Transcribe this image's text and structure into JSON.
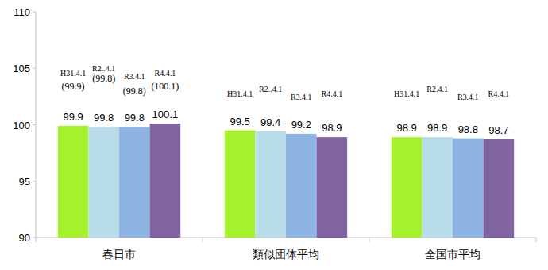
{
  "chart_data": {
    "type": "bar",
    "categories": [
      "春日市",
      "類似団体平均",
      "全国市平均"
    ],
    "series": [
      {
        "color": "#a5f22c",
        "values": [
          99.9,
          99.5,
          98.9
        ]
      },
      {
        "color": "#b8dde9",
        "values": [
          99.8,
          99.4,
          98.9
        ]
      },
      {
        "color": "#8eb4e3",
        "values": [
          99.8,
          99.2,
          98.8
        ]
      },
      {
        "color": "#8064a2",
        "values": [
          100.1,
          98.9,
          98.7
        ]
      }
    ],
    "annotations": [
      [
        "H31.4.1",
        "R2..4.1",
        "R3.4.1",
        "R4.4.1",
        "(99.9)",
        "(99.8)",
        "(99.8)",
        "(100.1)"
      ],
      [
        "H31.4.1",
        "R2..4.1",
        "R3.4.1",
        "R4.4.1"
      ],
      [
        "H31.4.1",
        "R2.4.1",
        "R3.4.1",
        "R4.4.1"
      ]
    ],
    "ylim": [
      90,
      110
    ],
    "yticks": [
      90,
      95,
      100,
      105,
      110
    ],
    "grid": false,
    "data_labels": true
  }
}
